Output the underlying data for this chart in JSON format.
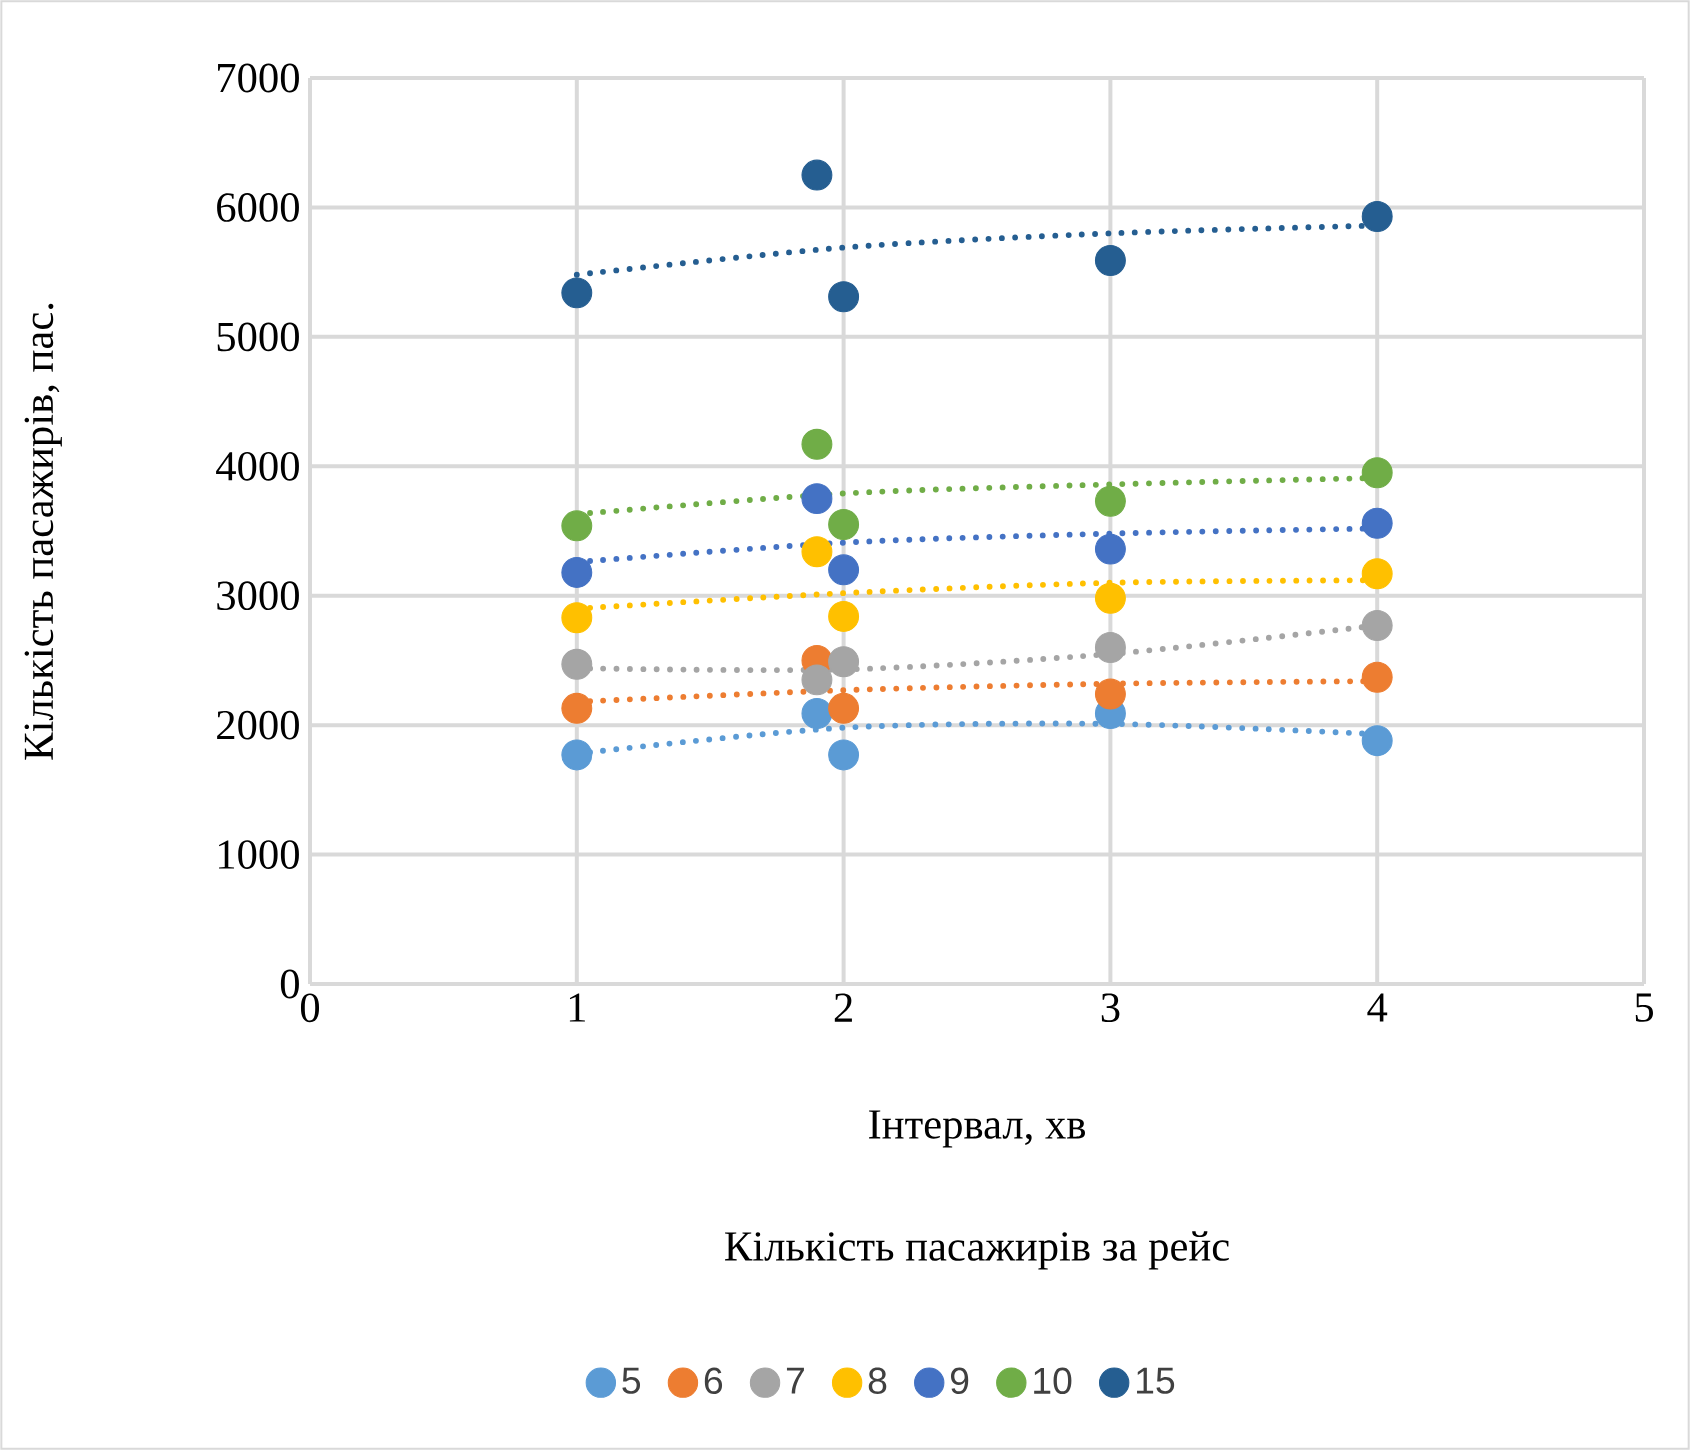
{
  "chart_data": {
    "type": "scatter",
    "xlabel": "Інтервал, хв",
    "ylabel": "Кількість пасажирів, пас.",
    "legend_title": "Кількість пасажирів за рейс",
    "x": [
      1,
      1.9,
      2,
      3,
      4
    ],
    "series": [
      {
        "name": "5",
        "color": "#5b9bd5",
        "marker": "circle",
        "values": [
          1770,
          2090,
          1770,
          2090,
          1880
        ]
      },
      {
        "name": "6",
        "color": "#ed7d31",
        "marker": "circle",
        "values": [
          2130,
          2500,
          2130,
          2240,
          2370
        ]
      },
      {
        "name": "7",
        "color": "#a5a5a5",
        "marker": "circle",
        "values": [
          2470,
          2350,
          2490,
          2600,
          2770
        ]
      },
      {
        "name": "8",
        "color": "#ffc000",
        "marker": "circle",
        "values": [
          2830,
          3340,
          2840,
          2980,
          3170
        ]
      },
      {
        "name": "9",
        "color": "#4472c4",
        "marker": "circle",
        "values": [
          3180,
          3750,
          3200,
          3360,
          3560
        ]
      },
      {
        "name": "10",
        "color": "#70ad47",
        "marker": "circle",
        "values": [
          3540,
          4170,
          3550,
          3730,
          3950
        ]
      },
      {
        "name": "15",
        "color": "#255e91",
        "marker": "circle",
        "values": [
          5340,
          6250,
          5310,
          5590,
          5930
        ]
      },
      {
        "type": "line",
        "color": "#5b9bd5",
        "line_style": "dotted",
        "marker": "none",
        "x": [
          1,
          2,
          3,
          4
        ],
        "values": [
          1780,
          1980,
          2010,
          1930
        ]
      },
      {
        "type": "line",
        "color": "#ed7d31",
        "line_style": "dotted",
        "marker": "none",
        "x": [
          1,
          2,
          3,
          4
        ],
        "values": [
          2180,
          2270,
          2320,
          2340
        ]
      },
      {
        "type": "line",
        "color": "#a5a5a5",
        "line_style": "dotted",
        "marker": "none",
        "x": [
          1,
          2,
          3,
          4
        ],
        "values": [
          2440,
          2430,
          2550,
          2770
        ]
      },
      {
        "type": "line",
        "color": "#ffc000",
        "line_style": "dotted",
        "marker": "none",
        "x": [
          1,
          2,
          3,
          4
        ],
        "values": [
          2900,
          3020,
          3100,
          3120
        ]
      },
      {
        "type": "line",
        "color": "#4472c4",
        "line_style": "dotted",
        "marker": "none",
        "x": [
          1,
          2,
          3,
          4
        ],
        "values": [
          3260,
          3410,
          3480,
          3520
        ]
      },
      {
        "type": "line",
        "color": "#70ad47",
        "line_style": "dotted",
        "marker": "none",
        "x": [
          1,
          2,
          3,
          4
        ],
        "values": [
          3630,
          3790,
          3860,
          3910
        ]
      },
      {
        "type": "line",
        "color": "#255e91",
        "line_style": "dotted",
        "marker": "none",
        "x": [
          1,
          2,
          3,
          4
        ],
        "values": [
          5480,
          5690,
          5800,
          5860
        ]
      }
    ],
    "xlim": [
      0,
      5
    ],
    "xticks": [
      0,
      1,
      2,
      3,
      4,
      5
    ],
    "ylim": [
      0,
      7000
    ],
    "yticks": [
      0,
      1000,
      2000,
      3000,
      4000,
      5000,
      6000,
      7000
    ],
    "grid": true,
    "legend": "bottom"
  }
}
